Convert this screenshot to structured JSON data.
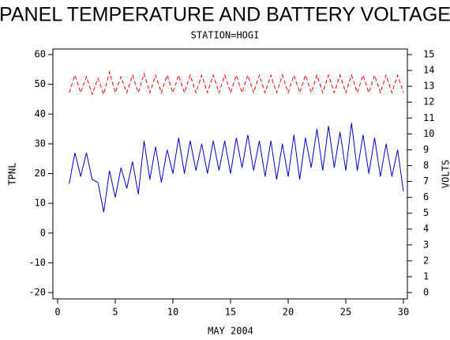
{
  "chart_data": {
    "type": "line",
    "title": "PANEL TEMPERATURE AND BATTERY VOLTAGE",
    "subtitle": "STATION=HOGI",
    "x_label": "MAY 2004",
    "y_label": "TPNL",
    "y2_label": "VOLTS",
    "x": [
      1,
      1.5,
      2,
      2.5,
      3,
      3.5,
      4,
      4.5,
      5,
      5.5,
      6,
      6.5,
      7,
      7.5,
      8,
      8.5,
      9,
      9.5,
      10,
      10.5,
      11,
      11.5,
      12,
      12.5,
      13,
      13.5,
      14,
      14.5,
      15,
      15.5,
      16,
      16.5,
      17,
      17.5,
      18,
      18.5,
      19,
      19.5,
      20,
      20.5,
      21,
      21.5,
      22,
      22.5,
      23,
      23.5,
      24,
      24.5,
      25,
      25.5,
      26,
      26.5,
      27,
      27.5,
      28,
      28.5,
      29,
      29.5,
      30
    ],
    "series": [
      {
        "color": "#0000cc",
        "values": [
          16.5,
          27,
          19,
          27,
          18,
          17,
          7,
          21,
          12,
          22,
          15,
          24,
          13,
          31,
          18,
          29,
          17,
          28,
          20,
          32,
          20,
          31,
          21,
          30,
          20,
          31,
          21,
          31,
          20,
          32,
          22,
          33,
          21,
          31,
          19,
          31,
          18,
          30,
          19,
          33,
          18,
          32,
          22,
          35,
          21,
          36,
          22,
          34,
          21,
          37,
          21,
          33,
          20,
          32,
          19,
          30,
          19,
          28,
          14
        ]
      },
      {
        "color": "#ff0000",
        "axis": "y2",
        "dashed": true,
        "values": [
          12.6,
          13.7,
          12.6,
          13.6,
          12.5,
          13.5,
          12.5,
          13.9,
          12.6,
          13.6,
          12.6,
          13.7,
          12.6,
          13.8,
          12.6,
          13.7,
          12.6,
          13.7,
          12.6,
          13.7,
          12.6,
          13.7,
          12.6,
          13.7,
          12.6,
          13.7,
          12.6,
          13.7,
          12.6,
          13.7,
          12.6,
          13.7,
          12.6,
          13.7,
          12.6,
          13.7,
          12.6,
          13.7,
          12.6,
          13.7,
          12.6,
          13.7,
          12.6,
          13.7,
          12.6,
          13.7,
          12.6,
          13.7,
          12.6,
          13.7,
          12.6,
          13.7,
          12.6,
          13.7,
          12.6,
          13.7,
          12.6,
          13.7,
          12.6
        ]
      }
    ],
    "xlim": [
      0,
      30
    ],
    "xticks": [
      0,
      5,
      10,
      15,
      20,
      25,
      30
    ],
    "ylim": [
      -20,
      60
    ],
    "yticks": [
      -20,
      -10,
      0,
      10,
      20,
      30,
      40,
      50,
      60
    ],
    "y2lim": [
      0,
      15
    ],
    "y2ticks": [
      0,
      1,
      2,
      3,
      4,
      5,
      6,
      7,
      8,
      9,
      10,
      11,
      12,
      13,
      14,
      15
    ]
  }
}
